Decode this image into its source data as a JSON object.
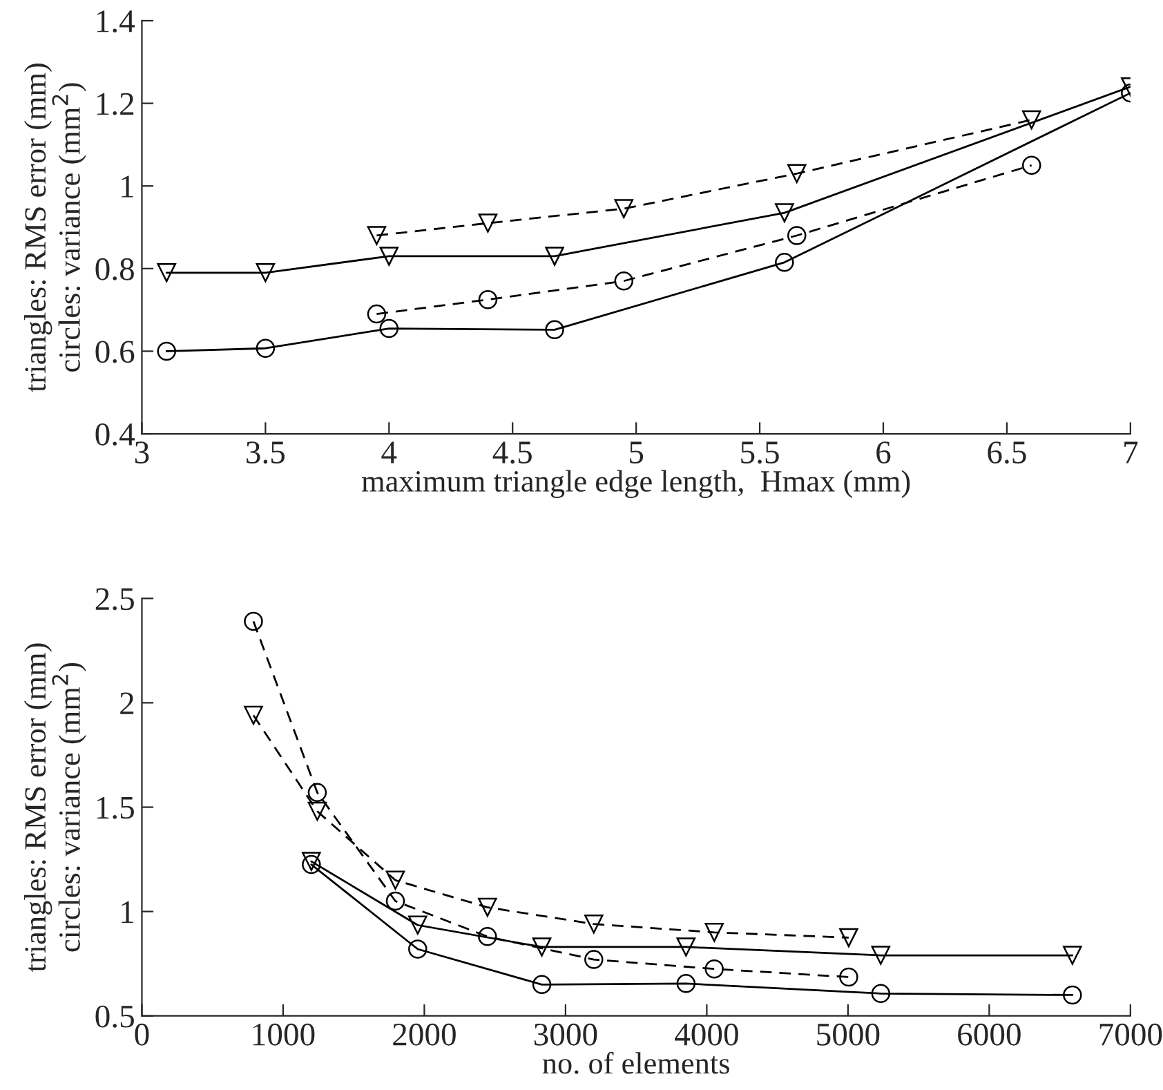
{
  "chart_data": [
    {
      "type": "line",
      "xlabel": "maximum triangle edge length,  Hmax (mm)",
      "ylabel": "triangles: RMS error (mm)\ncircles: variance (mm$^{2}$)",
      "xlim": [
        3,
        7
      ],
      "xticks": [
        3,
        3.5,
        4,
        4.5,
        5,
        5.5,
        6,
        6.5,
        7
      ],
      "ylim": [
        0.4,
        1.4
      ],
      "yticks": [
        0.4,
        0.6,
        0.8,
        1,
        1.2,
        1.4
      ],
      "grid": false,
      "legend": false,
      "series": [
        {
          "color": "#000000",
          "marker": "triangle",
          "line_style": "solid",
          "x": [
            3.1,
            3.5,
            4.0,
            4.67,
            5.6,
            7.0
          ],
          "values": [
            0.79,
            0.79,
            0.83,
            0.83,
            0.935,
            1.24
          ]
        },
        {
          "color": "#000000",
          "marker": "circle",
          "line_style": "solid",
          "x": [
            3.1,
            3.5,
            4.0,
            4.67,
            5.6,
            7.0
          ],
          "values": [
            0.6,
            0.607,
            0.655,
            0.652,
            0.815,
            1.225
          ]
        },
        {
          "color": "#000000",
          "marker": "triangle",
          "line_style": "dashed",
          "x": [
            3.95,
            4.4,
            4.95,
            5.65,
            6.6
          ],
          "values": [
            0.88,
            0.91,
            0.945,
            1.03,
            1.16
          ]
        },
        {
          "color": "#000000",
          "marker": "circle",
          "line_style": "dashed",
          "x": [
            3.95,
            4.4,
            4.95,
            5.65,
            6.6
          ],
          "values": [
            0.69,
            0.725,
            0.77,
            0.88,
            1.05
          ]
        }
      ]
    },
    {
      "type": "line",
      "xlabel": "no. of elements",
      "ylabel": "triangles: RMS error (mm)\ncircles: variance (mm$^{2}$)",
      "xlim": [
        0,
        7000
      ],
      "xticks": [
        0,
        1000,
        2000,
        3000,
        4000,
        5000,
        6000,
        7000
      ],
      "ylim": [
        0.5,
        2.5
      ],
      "yticks": [
        0.5,
        1,
        1.5,
        2,
        2.5
      ],
      "grid": false,
      "legend": false,
      "series": [
        {
          "color": "#000000",
          "marker": "triangle",
          "line_style": "solid",
          "x": [
            1200,
            1953,
            2832,
            3853,
            5232,
            6589
          ],
          "values": [
            1.24,
            0.935,
            0.83,
            0.83,
            0.79,
            0.79
          ]
        },
        {
          "color": "#000000",
          "marker": "circle",
          "line_style": "solid",
          "x": [
            1200,
            1953,
            2832,
            3853,
            5232,
            6589
          ],
          "values": [
            1.225,
            0.82,
            0.65,
            0.655,
            0.607,
            0.6
          ]
        },
        {
          "color": "#000000",
          "marker": "triangle",
          "line_style": "dashed",
          "x": [
            790,
            1242,
            1795,
            2447,
            3200,
            4053,
            5005
          ],
          "values": [
            1.94,
            1.48,
            1.15,
            1.02,
            0.94,
            0.9,
            0.875
          ]
        },
        {
          "color": "#000000",
          "marker": "circle",
          "line_style": "dashed",
          "x": [
            790,
            1242,
            1795,
            2447,
            3200,
            4053,
            5005
          ],
          "values": [
            2.39,
            1.57,
            1.05,
            0.88,
            0.77,
            0.725,
            0.686
          ]
        }
      ]
    }
  ]
}
